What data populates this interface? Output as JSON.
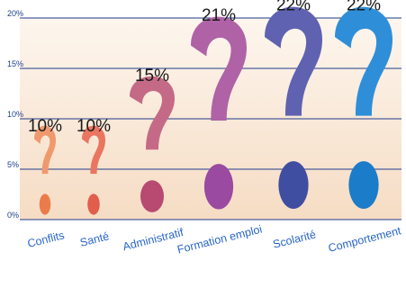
{
  "chart_data": {
    "type": "bar",
    "categories": [
      "Conflits",
      "Santé",
      "Administratif",
      "Formation emploi",
      "Scolarité",
      "Comportement"
    ],
    "values": [
      10,
      10,
      15,
      21,
      22,
      22
    ],
    "value_labels": [
      "10%",
      "10%",
      "15%",
      "21%",
      "22%",
      "22%"
    ],
    "ylim": [
      0,
      20
    ],
    "yticks": [
      0,
      5,
      10,
      15,
      20
    ],
    "ytick_labels": [
      "0%",
      "5%",
      "10%",
      "15%",
      "20%"
    ],
    "grid": true,
    "bar_colors": [
      "#f0996f",
      "#ea7560",
      "#c56a86",
      "#b062a6",
      "#5f62b0",
      "#2f8ed8"
    ],
    "dot_colors": [
      "#ec7b4c",
      "#e25e4c",
      "#b84a72",
      "#9a4aa0",
      "#3f4ea0",
      "#1b7cc9"
    ],
    "background_gradient": [
      "#fdf6ee",
      "#f6dcc4"
    ],
    "gridline_color": "#1f3b8c"
  }
}
